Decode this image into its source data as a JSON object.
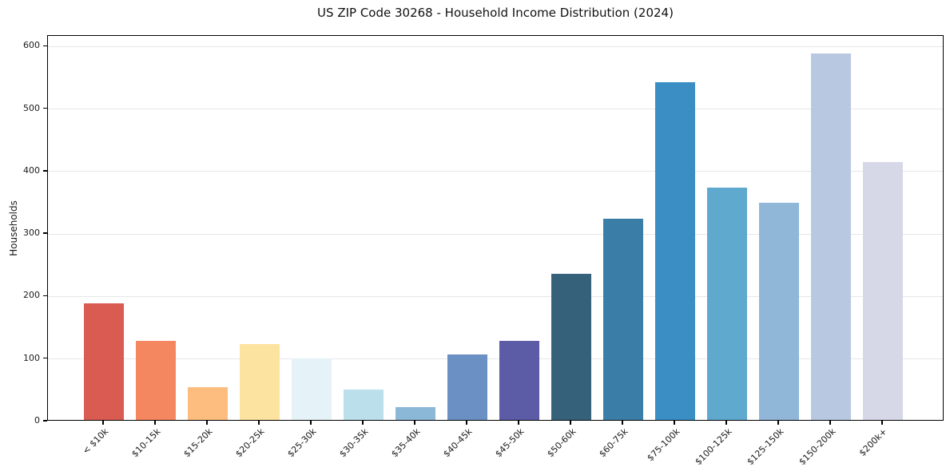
{
  "title": "US ZIP Code 30268 - Household Income Distribution (2024)",
  "chart_data": {
    "type": "bar",
    "title": "US ZIP Code 30268 - Household Income Distribution (2024)",
    "xlabel": "",
    "ylabel": "Households",
    "categories": [
      "< $10k",
      "$10-15k",
      "$15-20k",
      "$20-25k",
      "$25-30k",
      "$30-35k",
      "$35-40k",
      "$40-45k",
      "$45-50k",
      "$50-60k",
      "$60-75k",
      "$75-100k",
      "$100-125k",
      "$125-150k",
      "$150-200k",
      "$200k+"
    ],
    "values": [
      187,
      127,
      52,
      122,
      99,
      48,
      21,
      105,
      126,
      234,
      322,
      541,
      372,
      347,
      586,
      412
    ],
    "bar_colors": [
      "#d95b52",
      "#f4875f",
      "#fcbd7e",
      "#fde3a0",
      "#e5f2f7",
      "#bcdfec",
      "#8cb8d8",
      "#6b90c4",
      "#5b5ba6",
      "#36617a",
      "#3a7da6",
      "#3a8ec4",
      "#5fa8ce",
      "#90b7d8",
      "#b9c8e1",
      "#d6d8e7"
    ],
    "yticks": [
      0,
      100,
      200,
      300,
      400,
      500,
      600
    ],
    "ylim": [
      0,
      617
    ],
    "x_tick_rotation": 45,
    "grid": "horizontal",
    "grid_color": "#e7e7e7",
    "background": "#ffffff",
    "legend": "none"
  }
}
